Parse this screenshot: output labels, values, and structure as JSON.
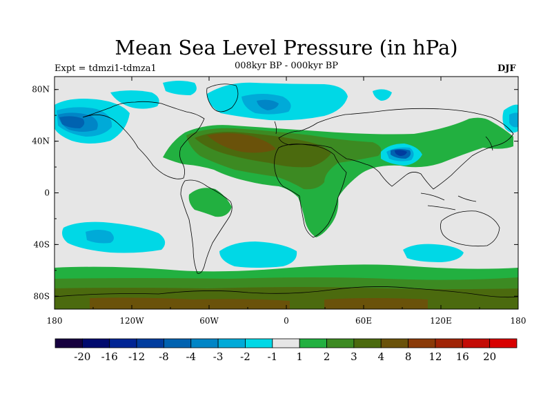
{
  "title": "Mean Sea Level Pressure (in hPa)",
  "left_label": "Expt = tdmzi1-tdmza1",
  "center_label": "008kyr BP - 000kyr BP",
  "right_label": "DJF",
  "map": {
    "projection": "cylindrical-equidistant",
    "lon_range": [
      -180,
      180
    ],
    "lat_range": [
      -90,
      90
    ],
    "x_ticks": [
      "180",
      "120W",
      "60W",
      "0",
      "60E",
      "120E",
      "180"
    ],
    "y_ticks": [
      "80N",
      "40N",
      "0",
      "40S",
      "80S"
    ],
    "background_color": "#e6e6e6",
    "coastline_color": "#000000"
  },
  "colorbar": {
    "labels": [
      "-20",
      "-16",
      "-12",
      "-8",
      "-4",
      "-3",
      "-2",
      "-1",
      "1",
      "2",
      "3",
      "4",
      "8",
      "12",
      "16",
      "20"
    ],
    "colors": [
      "#16003f",
      "#000a6e",
      "#002494",
      "#003c9e",
      "#0062b0",
      "#0085c6",
      "#00aad8",
      "#00d8e6",
      "#e6e6e6",
      "#22b040",
      "#3c8a22",
      "#4b6a0e",
      "#6a520a",
      "#8a3a08",
      "#a02406",
      "#c40c06",
      "#d80000"
    ]
  },
  "fields": [
    {
      "name": "north-pacific-low",
      "level": "-4 to -2",
      "color": "#0062b0"
    },
    {
      "name": "north-atlantic-low",
      "level": "-3 to -1",
      "color": "#00aad8"
    },
    {
      "name": "tibet-low",
      "level": "-8 to -2",
      "color": "#003c9e"
    },
    {
      "name": "south-pacific-low",
      "level": "-3 to -1",
      "color": "#00aad8"
    },
    {
      "name": "south-atlantic-low",
      "level": "-2 to -1",
      "color": "#00d8e6"
    },
    {
      "name": "south-indian-low",
      "level": "-2 to -1",
      "color": "#00d8e6"
    },
    {
      "name": "eurasia-africa-high",
      "level": "1 to 8",
      "color": "#6a520a"
    },
    {
      "name": "south-america-high",
      "level": "1 to 2",
      "color": "#22b040"
    },
    {
      "name": "southern-ocean-antarctica-high",
      "level": "1 to 12",
      "color": "#8a3a08"
    }
  ]
}
